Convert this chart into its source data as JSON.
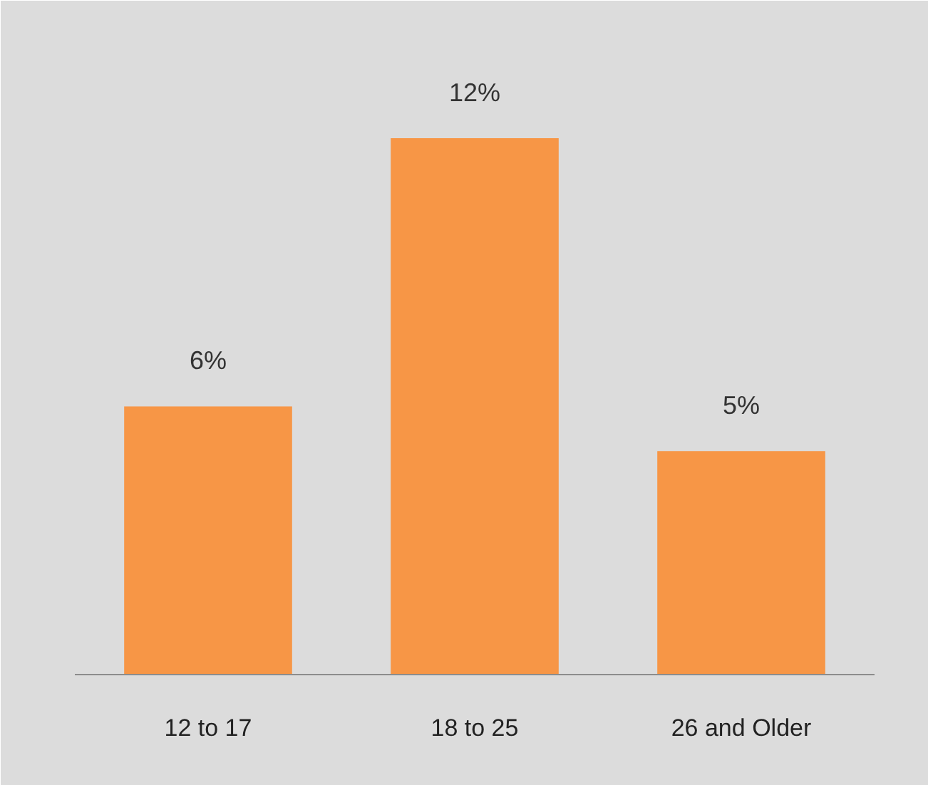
{
  "chart_data": {
    "type": "bar",
    "categories": [
      "12 to 17",
      "18 to 25",
      "26 and Older"
    ],
    "values": [
      6,
      12,
      5
    ],
    "value_labels": [
      "6%",
      "12%",
      "5%"
    ],
    "color": "#f79646"
  }
}
